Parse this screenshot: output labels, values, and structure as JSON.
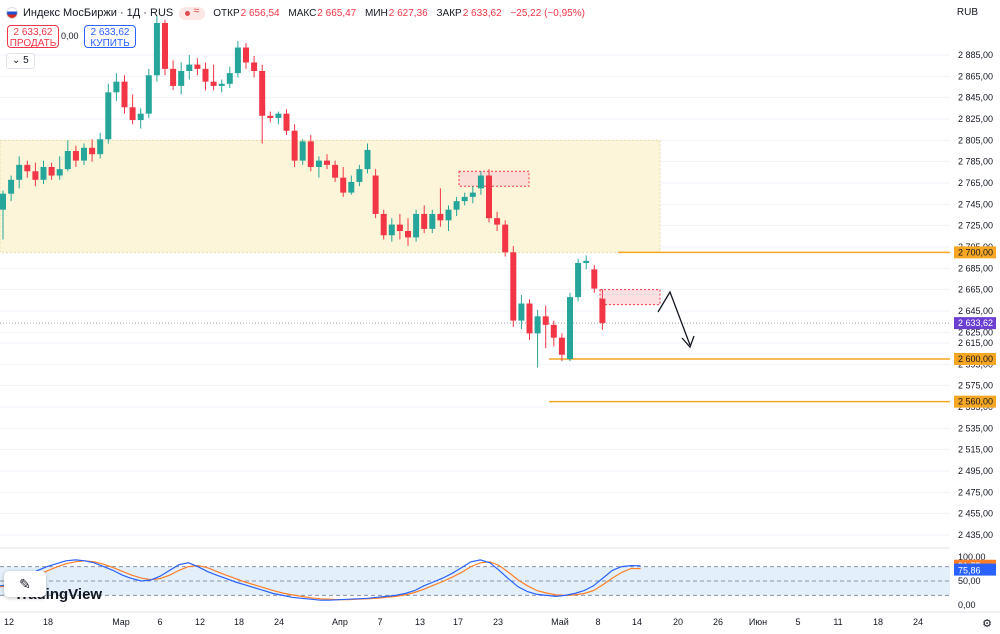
{
  "header": {
    "symbol": "Индекс МосБиржи · 1Д · RUS",
    "open_label": "ОТКР",
    "open": "2 656,54",
    "high_label": "МАКС",
    "high": "2 665,47",
    "low_label": "МИН",
    "low": "2 627,36",
    "close_label": "ЗАКР",
    "close": "2 633,62",
    "change": "−25,22 (−0,95%)"
  },
  "trade": {
    "sell_price": "2 633,62",
    "sell_label": "ПРОДАТЬ",
    "spread": "0,00",
    "buy_price": "2 633,62",
    "buy_label": "КУПИТЬ"
  },
  "indicator_count": "5",
  "currency": "RUB",
  "watermark": "TradingView",
  "colors": {
    "up": "#26a69a",
    "down": "#f23645",
    "level": "#f5a623",
    "price_tag": "#6b3fd1",
    "zone": "#fdf5d9"
  },
  "chart_data": {
    "type": "candlestick",
    "y_axis_ticks": [
      "2 885,00",
      "2 865,00",
      "2 845,00",
      "2 825,00",
      "2 805,00",
      "2 785,00",
      "2 765,00",
      "2 745,00",
      "2 725,00",
      "2 705,00",
      "2 685,00",
      "2 665,00",
      "2 645,00",
      "2 625,00",
      "2 615,00",
      "2 595,00",
      "2 575,00",
      "2 555,00",
      "2 535,00",
      "2 515,00",
      "2 495,00",
      "2 475,00",
      "2 455,00",
      "2 435,00"
    ],
    "y_range": [
      2425,
      2905
    ],
    "x_axis_labels": [
      "12",
      "18",
      "Мар",
      "6",
      "12",
      "18",
      "24",
      "Апр",
      "7",
      "13",
      "17",
      "23",
      "Май",
      "8",
      "14",
      "20",
      "26",
      "Июн",
      "5",
      "11",
      "18",
      "24"
    ],
    "candles": [
      {
        "o": 2740,
        "h": 2758,
        "l": 2712,
        "c": 2755
      },
      {
        "o": 2755,
        "h": 2772,
        "l": 2748,
        "c": 2768
      },
      {
        "o": 2768,
        "h": 2790,
        "l": 2760,
        "c": 2782
      },
      {
        "o": 2782,
        "h": 2786,
        "l": 2770,
        "c": 2776
      },
      {
        "o": 2776,
        "h": 2784,
        "l": 2762,
        "c": 2768
      },
      {
        "o": 2768,
        "h": 2786,
        "l": 2764,
        "c": 2780
      },
      {
        "o": 2780,
        "h": 2784,
        "l": 2768,
        "c": 2772
      },
      {
        "o": 2772,
        "h": 2790,
        "l": 2768,
        "c": 2778
      },
      {
        "o": 2778,
        "h": 2805,
        "l": 2776,
        "c": 2795
      },
      {
        "o": 2795,
        "h": 2800,
        "l": 2780,
        "c": 2786
      },
      {
        "o": 2786,
        "h": 2802,
        "l": 2782,
        "c": 2798
      },
      {
        "o": 2798,
        "h": 2806,
        "l": 2785,
        "c": 2792
      },
      {
        "o": 2792,
        "h": 2812,
        "l": 2788,
        "c": 2806
      },
      {
        "o": 2806,
        "h": 2858,
        "l": 2802,
        "c": 2850
      },
      {
        "o": 2850,
        "h": 2868,
        "l": 2842,
        "c": 2860
      },
      {
        "o": 2860,
        "h": 2866,
        "l": 2830,
        "c": 2836
      },
      {
        "o": 2836,
        "h": 2848,
        "l": 2820,
        "c": 2824
      },
      {
        "o": 2824,
        "h": 2835,
        "l": 2816,
        "c": 2830
      },
      {
        "o": 2830,
        "h": 2872,
        "l": 2826,
        "c": 2866
      },
      {
        "o": 2866,
        "h": 2922,
        "l": 2860,
        "c": 2915
      },
      {
        "o": 2915,
        "h": 2918,
        "l": 2866,
        "c": 2872
      },
      {
        "o": 2872,
        "h": 2880,
        "l": 2852,
        "c": 2856
      },
      {
        "o": 2856,
        "h": 2878,
        "l": 2848,
        "c": 2870
      },
      {
        "o": 2870,
        "h": 2885,
        "l": 2862,
        "c": 2876
      },
      {
        "o": 2876,
        "h": 2882,
        "l": 2866,
        "c": 2872
      },
      {
        "o": 2872,
        "h": 2878,
        "l": 2852,
        "c": 2860
      },
      {
        "o": 2860,
        "h": 2876,
        "l": 2852,
        "c": 2856
      },
      {
        "o": 2856,
        "h": 2862,
        "l": 2850,
        "c": 2858
      },
      {
        "o": 2858,
        "h": 2874,
        "l": 2854,
        "c": 2868
      },
      {
        "o": 2868,
        "h": 2898,
        "l": 2864,
        "c": 2892
      },
      {
        "o": 2892,
        "h": 2896,
        "l": 2872,
        "c": 2878
      },
      {
        "o": 2878,
        "h": 2884,
        "l": 2864,
        "c": 2870
      },
      {
        "o": 2870,
        "h": 2876,
        "l": 2802,
        "c": 2828
      },
      {
        "o": 2828,
        "h": 2832,
        "l": 2822,
        "c": 2826
      },
      {
        "o": 2826,
        "h": 2832,
        "l": 2820,
        "c": 2830
      },
      {
        "o": 2830,
        "h": 2834,
        "l": 2810,
        "c": 2814
      },
      {
        "o": 2814,
        "h": 2820,
        "l": 2780,
        "c": 2786
      },
      {
        "o": 2786,
        "h": 2806,
        "l": 2782,
        "c": 2804
      },
      {
        "o": 2804,
        "h": 2810,
        "l": 2776,
        "c": 2780
      },
      {
        "o": 2780,
        "h": 2790,
        "l": 2770,
        "c": 2786
      },
      {
        "o": 2786,
        "h": 2792,
        "l": 2778,
        "c": 2782
      },
      {
        "o": 2782,
        "h": 2786,
        "l": 2766,
        "c": 2770
      },
      {
        "o": 2770,
        "h": 2780,
        "l": 2752,
        "c": 2756
      },
      {
        "o": 2756,
        "h": 2772,
        "l": 2754,
        "c": 2766
      },
      {
        "o": 2766,
        "h": 2782,
        "l": 2762,
        "c": 2778
      },
      {
        "o": 2778,
        "h": 2802,
        "l": 2774,
        "c": 2796
      },
      {
        "o": 2772,
        "h": 2778,
        "l": 2732,
        "c": 2736
      },
      {
        "o": 2736,
        "h": 2740,
        "l": 2712,
        "c": 2716
      },
      {
        "o": 2716,
        "h": 2732,
        "l": 2710,
        "c": 2726
      },
      {
        "o": 2726,
        "h": 2736,
        "l": 2712,
        "c": 2720
      },
      {
        "o": 2720,
        "h": 2732,
        "l": 2706,
        "c": 2714
      },
      {
        "o": 2714,
        "h": 2740,
        "l": 2710,
        "c": 2736
      },
      {
        "o": 2736,
        "h": 2744,
        "l": 2718,
        "c": 2722
      },
      {
        "o": 2722,
        "h": 2740,
        "l": 2718,
        "c": 2736
      },
      {
        "o": 2736,
        "h": 2760,
        "l": 2724,
        "c": 2730
      },
      {
        "o": 2730,
        "h": 2744,
        "l": 2720,
        "c": 2740
      },
      {
        "o": 2740,
        "h": 2752,
        "l": 2734,
        "c": 2748
      },
      {
        "o": 2748,
        "h": 2756,
        "l": 2744,
        "c": 2752
      },
      {
        "o": 2752,
        "h": 2762,
        "l": 2746,
        "c": 2756
      },
      {
        "o": 2760,
        "h": 2776,
        "l": 2754,
        "c": 2772
      },
      {
        "o": 2772,
        "h": 2778,
        "l": 2728,
        "c": 2732
      },
      {
        "o": 2732,
        "h": 2738,
        "l": 2720,
        "c": 2726
      },
      {
        "o": 2726,
        "h": 2730,
        "l": 2696,
        "c": 2700
      },
      {
        "o": 2700,
        "h": 2706,
        "l": 2630,
        "c": 2636
      },
      {
        "o": 2636,
        "h": 2660,
        "l": 2628,
        "c": 2652
      },
      {
        "o": 2652,
        "h": 2656,
        "l": 2618,
        "c": 2624
      },
      {
        "o": 2624,
        "h": 2646,
        "l": 2592,
        "c": 2640
      },
      {
        "o": 2640,
        "h": 2650,
        "l": 2610,
        "c": 2632
      },
      {
        "o": 2632,
        "h": 2636,
        "l": 2612,
        "c": 2620
      },
      {
        "o": 2620,
        "h": 2624,
        "l": 2598,
        "c": 2604
      },
      {
        "o": 2600,
        "h": 2662,
        "l": 2598,
        "c": 2658
      },
      {
        "o": 2658,
        "h": 2694,
        "l": 2654,
        "c": 2690
      },
      {
        "o": 2690,
        "h": 2697,
        "l": 2684,
        "c": 2692
      },
      {
        "o": 2684,
        "h": 2688,
        "l": 2662,
        "c": 2666
      },
      {
        "o": 2656.54,
        "h": 2665.47,
        "l": 2627.36,
        "c": 2633.62
      }
    ],
    "levels": [
      {
        "label": "2 700,00",
        "value": 2700
      },
      {
        "label": "2 600,00",
        "value": 2600
      },
      {
        "label": "2 560,00",
        "value": 2560
      }
    ],
    "last_price_label": "2 633,62",
    "last_price": 2633.62,
    "oscillator": {
      "ticks": [
        "100,00",
        "50,00",
        "0,00"
      ],
      "k_label": "81,75",
      "d_label": "75,86",
      "k": [
        40,
        42,
        50,
        62,
        72,
        80,
        86,
        92,
        94,
        92,
        88,
        80,
        72,
        62,
        55,
        50,
        52,
        60,
        72,
        84,
        88,
        80,
        70,
        62,
        55,
        48,
        42,
        36,
        30,
        24,
        20,
        16,
        14,
        12,
        10,
        10,
        11,
        12,
        13,
        14,
        16,
        18,
        20,
        24,
        30,
        40,
        48,
        56,
        66,
        78,
        90,
        94,
        88,
        72,
        54,
        38,
        28,
        22,
        20,
        18,
        20,
        24,
        30,
        40,
        56,
        72,
        80,
        82,
        81.75
      ],
      "d": [
        38,
        40,
        45,
        53,
        62,
        71,
        79,
        86,
        90,
        92,
        90,
        85,
        78,
        70,
        62,
        56,
        53,
        55,
        62,
        72,
        80,
        82,
        78,
        70,
        62,
        55,
        48,
        42,
        36,
        30,
        25,
        21,
        18,
        15,
        13,
        12,
        11,
        11,
        12,
        13,
        14,
        16,
        18,
        21,
        26,
        33,
        41,
        49,
        58,
        68,
        80,
        88,
        90,
        82,
        68,
        52,
        40,
        30,
        25,
        21,
        20,
        21,
        24,
        30,
        42,
        56,
        68,
        76,
        75.86
      ]
    }
  }
}
